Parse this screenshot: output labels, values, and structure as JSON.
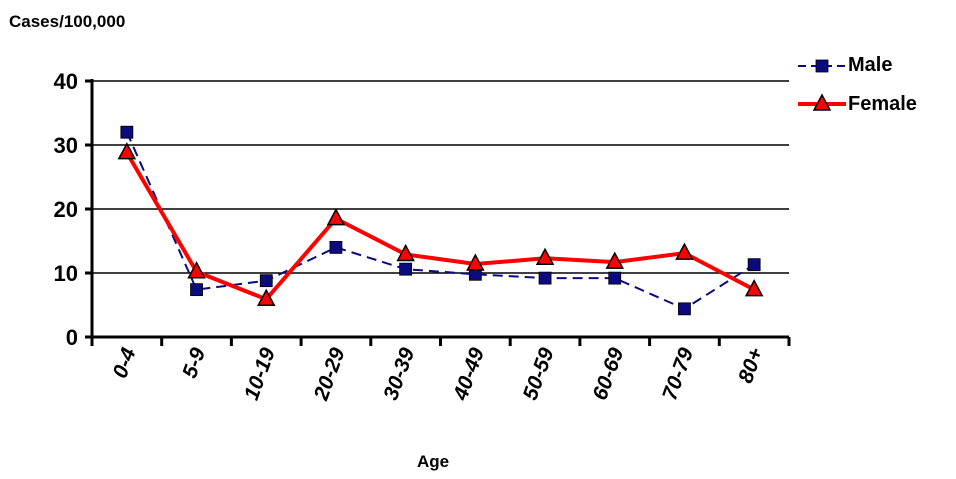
{
  "chart_data": {
    "type": "line",
    "ylabel": "Cases/100,000",
    "xlabel": "Age",
    "categories": [
      "0-4",
      "5-9",
      "10-19",
      "20-29",
      "30-39",
      "40-49",
      "50-59",
      "60-69",
      "70-79",
      "80+"
    ],
    "ylim": [
      0,
      40
    ],
    "yticks": [
      "0",
      "10",
      "20",
      "30",
      "40"
    ],
    "grid": true,
    "legend_position": "top-right",
    "series": [
      {
        "name": "Male",
        "values": [
          32,
          7.4,
          8.8,
          14,
          10.6,
          9.8,
          9.2,
          9.2,
          4.4,
          11.3
        ],
        "color": "#0b0b7f",
        "marker": "square",
        "line_style": "dashed"
      },
      {
        "name": "Female",
        "values": [
          28.8,
          10.2,
          5.9,
          18.5,
          12.9,
          11.4,
          12.3,
          11.7,
          13.1,
          7.4
        ],
        "color": "#ff0000",
        "marker_fill": "#ff0000",
        "marker": "triangle",
        "line_style": "solid"
      }
    ]
  }
}
